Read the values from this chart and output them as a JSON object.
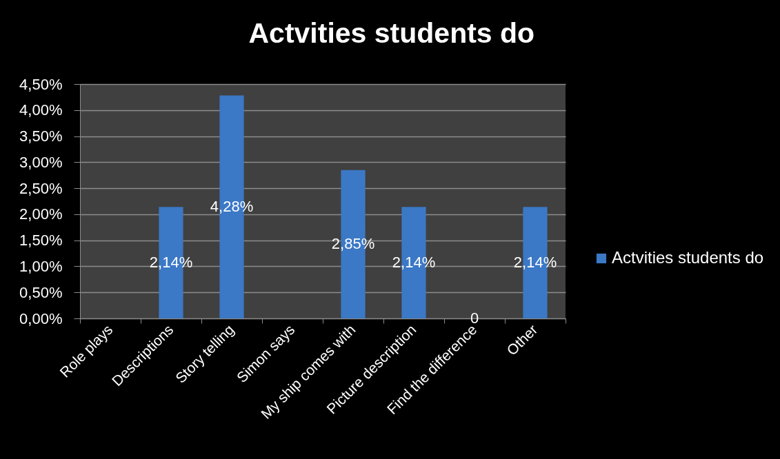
{
  "chart_data": {
    "type": "bar",
    "title": "Actvities students do",
    "categories": [
      "Role plays",
      "Descriptions",
      "Story telling",
      "Simon says",
      "My ship comes with",
      "Picture description",
      "Find the difference",
      "Other"
    ],
    "series": [
      {
        "name": "Actvities students do",
        "color": "#3b78c6",
        "values": [
          null,
          2.14,
          4.28,
          null,
          2.85,
          2.14,
          0,
          2.14
        ],
        "value_labels": [
          null,
          "2,14%",
          "4,28%",
          null,
          "2,85%",
          "2,14%",
          "0",
          "2,14%"
        ]
      }
    ],
    "ylim": [
      0,
      4.5
    ],
    "yticks": [
      {
        "value": 0,
        "label": "0,00%"
      },
      {
        "value": 0.5,
        "label": "0,50%"
      },
      {
        "value": 1,
        "label": "1,00%"
      },
      {
        "value": 1.5,
        "label": "1,50%"
      },
      {
        "value": 2,
        "label": "2,00%"
      },
      {
        "value": 2.5,
        "label": "2,50%"
      },
      {
        "value": 3,
        "label": "3,00%"
      },
      {
        "value": 3.5,
        "label": "3,50%"
      },
      {
        "value": 4,
        "label": "4,00%"
      },
      {
        "value": 4.5,
        "label": "4,50%"
      }
    ],
    "grid": "y",
    "legend": "right"
  }
}
